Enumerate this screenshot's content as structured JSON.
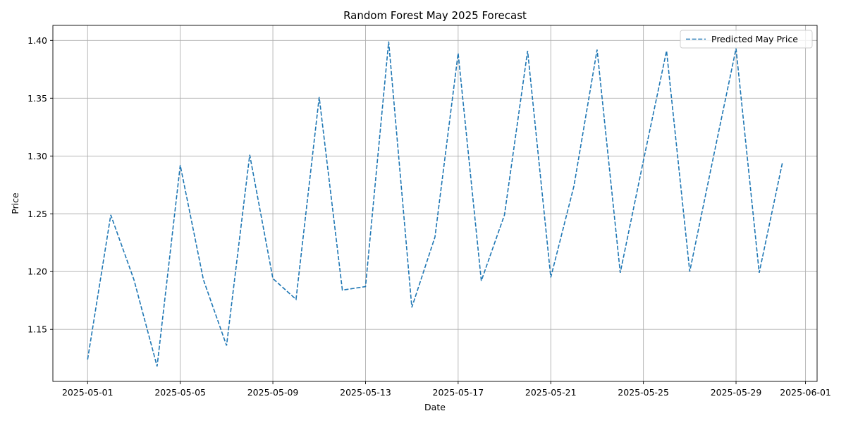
{
  "chart_data": {
    "type": "line",
    "title": "Random Forest May 2025 Forecast",
    "xlabel": "Date",
    "ylabel": "Price",
    "grid": true,
    "legend_position": "top-right",
    "xlim": [
      "2025-04-29T12:00",
      "2025-06-01T12:00"
    ],
    "ylim": [
      1.105,
      1.413
    ],
    "x_ticks": [
      "2025-05-01",
      "2025-05-05",
      "2025-05-09",
      "2025-05-13",
      "2025-05-17",
      "2025-05-21",
      "2025-05-25",
      "2025-05-29",
      "2025-06-01"
    ],
    "y_ticks": [
      "1.15",
      "1.20",
      "1.25",
      "1.30",
      "1.35",
      "1.40"
    ],
    "series": [
      {
        "name": "Predicted May Price",
        "color": "#1f77b4",
        "line_style": "dashed",
        "x": [
          "2025-05-01",
          "2025-05-02",
          "2025-05-03",
          "2025-05-04",
          "2025-05-05",
          "2025-05-06",
          "2025-05-07",
          "2025-05-08",
          "2025-05-09",
          "2025-05-10",
          "2025-05-11",
          "2025-05-12",
          "2025-05-13",
          "2025-05-14",
          "2025-05-15",
          "2025-05-16",
          "2025-05-17",
          "2025-05-18",
          "2025-05-19",
          "2025-05-20",
          "2025-05-21",
          "2025-05-22",
          "2025-05-23",
          "2025-05-24",
          "2025-05-25",
          "2025-05-26",
          "2025-05-27",
          "2025-05-28",
          "2025-05-29",
          "2025-05-30",
          "2025-05-31"
        ],
        "values": [
          1.124,
          1.249,
          1.193,
          1.118,
          1.292,
          1.193,
          1.136,
          1.301,
          1.194,
          1.176,
          1.351,
          1.184,
          1.187,
          1.399,
          1.169,
          1.23,
          1.389,
          1.192,
          1.249,
          1.391,
          1.195,
          1.274,
          1.392,
          1.199,
          1.296,
          1.391,
          1.2,
          1.297,
          1.393,
          1.199,
          1.294
        ]
      }
    ]
  }
}
